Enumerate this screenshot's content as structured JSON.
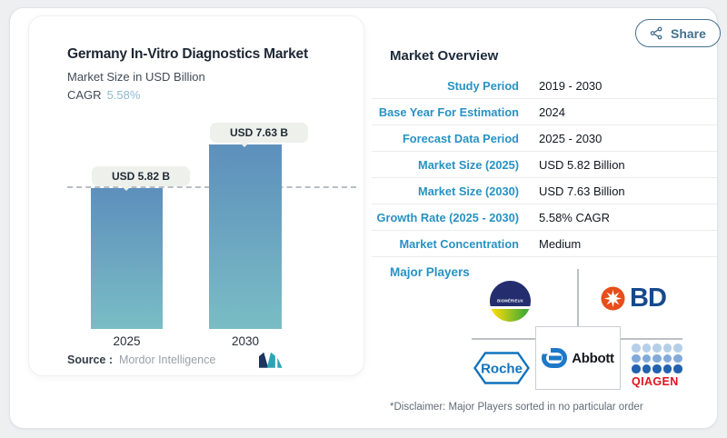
{
  "canvas": {
    "background": "#edeff1",
    "card_border": "#dfe3e8"
  },
  "share_button": {
    "label": "Share",
    "icon": "share-nodes-icon",
    "color": "#44718e"
  },
  "chart_panel": {
    "title": "Germany In-Vitro Diagnostics Market",
    "subtitle": "Market Size in USD Billion",
    "cagr_label": "CAGR",
    "cagr_value": "5.58%",
    "source_label": "Source :",
    "source_value": "Mordor Intelligence",
    "logo": "mordor-intelligence-logo"
  },
  "chart_data": {
    "type": "bar",
    "title": "Germany In-Vitro Diagnostics Market",
    "ylabel": "Market Size in USD Billion",
    "categories": [
      "2025",
      "2030"
    ],
    "values": [
      5.82,
      7.63
    ],
    "bar_labels": [
      "USD 5.82 B",
      "USD 7.63 B"
    ],
    "cagr_percent": 5.58,
    "baseline_dash_at": 5.82,
    "grid": false,
    "legend": false,
    "bar_color_top": "#5d8fbc",
    "bar_color_bottom": "#7abdc5",
    "source": "Mordor Intelligence"
  },
  "overview": {
    "title": "Market Overview",
    "label_color": "#2792c3",
    "rows": [
      {
        "label": "Study Period",
        "value": "2019 - 2030"
      },
      {
        "label": "Base Year For Estimation",
        "value": "2024"
      },
      {
        "label": "Forecast Data Period",
        "value": "2025 - 2030"
      },
      {
        "label": "Market Size (2025)",
        "value": "USD 5.82 Billion"
      },
      {
        "label": "Market Size (2030)",
        "value": "USD 7.63 Billion"
      },
      {
        "label": "Growth Rate (2025 - 2030)",
        "value": "5.58% CAGR"
      },
      {
        "label": "Market Concentration",
        "value": "Medium"
      }
    ]
  },
  "major_players": {
    "title": "Major Players",
    "disclaimer": "*Disclaimer: Major Players sorted in no particular order",
    "players": [
      {
        "name": "bioMérieux",
        "wordmark": "BIOMÉRIEUX"
      },
      {
        "name": "BD",
        "wordmark": "BD"
      },
      {
        "name": "Roche",
        "wordmark": "Roche"
      },
      {
        "name": "Abbott",
        "wordmark": "Abbott"
      },
      {
        "name": "QIAGEN",
        "wordmark": "QIAGEN"
      }
    ]
  }
}
